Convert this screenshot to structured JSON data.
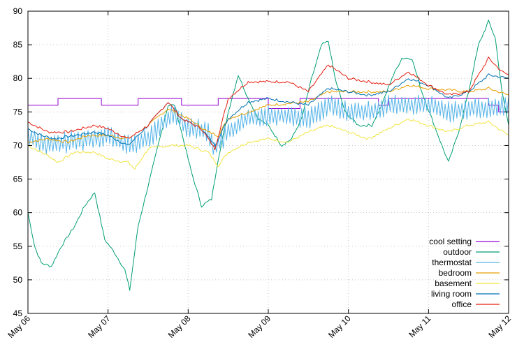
{
  "chart_data": {
    "type": "line",
    "title": "",
    "xlabel": "",
    "ylabel": "",
    "ylim": [
      45,
      90
    ],
    "xlim": [
      "May 06",
      "May 12"
    ],
    "y_ticks": [
      "45",
      "50",
      "55",
      "60",
      "65",
      "70",
      "75",
      "80",
      "85",
      "90"
    ],
    "x_ticks": [
      "May 06",
      "May 07",
      "May 08",
      "May 09",
      "May 10",
      "May 11",
      "May 12"
    ],
    "grid": true,
    "legend_position": "bottom-right",
    "series": [
      {
        "name": "cool setting",
        "color": "#9400d3",
        "interpolation": "step",
        "points": [
          [
            "May 06 00:00",
            76
          ],
          [
            "May 06 09:00",
            77
          ],
          [
            "May 06 22:00",
            76
          ],
          [
            "May 07 09:00",
            77
          ],
          [
            "May 07 22:00",
            76
          ],
          [
            "May 08 09:00",
            77
          ],
          [
            "May 09 00:00",
            75.5
          ],
          [
            "May 09 09:30",
            77
          ],
          [
            "May 10 09:00",
            76
          ],
          [
            "May 10 12:00",
            77
          ],
          [
            "May 11 18:00",
            76
          ],
          [
            "May 11 21:00",
            75
          ],
          [
            "May 12 00:00",
            75
          ]
        ]
      },
      {
        "name": "outdoor",
        "color": "#009e73",
        "points": [
          [
            "May 06 00:00",
            60
          ],
          [
            "May 06 02:00",
            55
          ],
          [
            "May 06 04:00",
            52.5
          ],
          [
            "May 06 07:00",
            52
          ],
          [
            "May 06 10:00",
            55
          ],
          [
            "May 06 14:00",
            58
          ],
          [
            "May 06 17:00",
            61
          ],
          [
            "May 06 20:00",
            63
          ],
          [
            "May 06 23:00",
            56
          ],
          [
            "May 07 02:00",
            54
          ],
          [
            "May 07 05:00",
            51.5
          ],
          [
            "May 07 06:30",
            48.5
          ],
          [
            "May 07 09:00",
            58
          ],
          [
            "May 07 12:00",
            64
          ],
          [
            "May 07 15:00",
            70
          ],
          [
            "May 07 18:00",
            76
          ],
          [
            "May 07 20:00",
            76
          ],
          [
            "May 07 22:00",
            72
          ],
          [
            "May 08 01:00",
            66
          ],
          [
            "May 08 04:00",
            61
          ],
          [
            "May 08 07:00",
            62
          ],
          [
            "May 08 09:00",
            68
          ],
          [
            "May 08 12:00",
            75
          ],
          [
            "May 08 15:00",
            80.5
          ],
          [
            "May 08 18:00",
            77
          ],
          [
            "May 08 21:00",
            74
          ],
          [
            "May 09 00:00",
            73
          ],
          [
            "May 09 04:00",
            70
          ],
          [
            "May 09 07:00",
            71
          ],
          [
            "May 09 10:00",
            74
          ],
          [
            "May 09 13:00",
            80
          ],
          [
            "May 09 16:00",
            85
          ],
          [
            "May 09 18:00",
            85.5
          ],
          [
            "May 09 20:00",
            80
          ],
          [
            "May 09 23:00",
            75
          ],
          [
            "May 10 03:00",
            73
          ],
          [
            "May 10 07:00",
            73
          ],
          [
            "May 10 10:00",
            76
          ],
          [
            "May 10 13:00",
            80
          ],
          [
            "May 10 16:00",
            83
          ],
          [
            "May 10 19:00",
            83
          ],
          [
            "May 10 22:00",
            78
          ],
          [
            "May 11 01:00",
            74
          ],
          [
            "May 11 04:00",
            70
          ],
          [
            "May 11 06:00",
            67.5
          ],
          [
            "May 11 09:00",
            72
          ],
          [
            "May 11 12:00",
            78
          ],
          [
            "May 11 15:00",
            85
          ],
          [
            "May 11 18:00",
            88.5
          ],
          [
            "May 11 20:00",
            86
          ],
          [
            "May 11 22:00",
            78
          ],
          [
            "May 12 00:00",
            73
          ]
        ]
      },
      {
        "name": "thermostat",
        "color": "#56b4e9",
        "oscillation": 1.6,
        "points": [
          [
            "May 06 00:00",
            71.5
          ],
          [
            "May 06 06:00",
            70
          ],
          [
            "May 06 12:00",
            70.5
          ],
          [
            "May 06 18:00",
            71
          ],
          [
            "May 07 00:00",
            71.5
          ],
          [
            "May 07 06:00",
            70
          ],
          [
            "May 07 12:00",
            71
          ],
          [
            "May 07 16:00",
            73
          ],
          [
            "May 07 20:00",
            75
          ],
          [
            "May 07 23:00",
            73
          ],
          [
            "May 08 06:00",
            72
          ],
          [
            "May 08 08:00",
            69.5
          ],
          [
            "May 08 12:00",
            72
          ],
          [
            "May 08 18:00",
            74
          ],
          [
            "May 09 00:00",
            74.5
          ],
          [
            "May 09 06:00",
            74.5
          ],
          [
            "May 09 12:00",
            74
          ],
          [
            "May 09 18:00",
            76
          ],
          [
            "May 10 00:00",
            75
          ],
          [
            "May 10 06:00",
            75
          ],
          [
            "May 10 12:00",
            76
          ],
          [
            "May 10 18:00",
            76
          ],
          [
            "May 11 00:00",
            76
          ],
          [
            "May 11 06:00",
            75
          ],
          [
            "May 11 12:00",
            75.5
          ],
          [
            "May 11 18:00",
            75.5
          ],
          [
            "May 12 00:00",
            76
          ]
        ]
      },
      {
        "name": "bedroom",
        "color": "#e69f00",
        "points": [
          [
            "May 06 00:00",
            70.5
          ],
          [
            "May 06 06:00",
            71
          ],
          [
            "May 06 12:00",
            70.5
          ],
          [
            "May 06 18:00",
            71.5
          ],
          [
            "May 07 00:00",
            71.5
          ],
          [
            "May 07 06:00",
            71
          ],
          [
            "May 07 12:00",
            73
          ],
          [
            "May 07 18:00",
            75.5
          ],
          [
            "May 08 00:00",
            74
          ],
          [
            "May 08 06:00",
            72
          ],
          [
            "May 08 09:00",
            71.5
          ],
          [
            "May 08 12:00",
            74
          ],
          [
            "May 08 18:00",
            75
          ],
          [
            "May 09 00:00",
            76
          ],
          [
            "May 09 12:00",
            76.5
          ],
          [
            "May 09 18:00",
            78
          ],
          [
            "May 10 00:00",
            78
          ],
          [
            "May 10 12:00",
            78
          ],
          [
            "May 10 18:00",
            79
          ],
          [
            "May 11 00:00",
            78.5
          ],
          [
            "May 11 12:00",
            78
          ],
          [
            "May 11 18:00",
            78.5
          ],
          [
            "May 12 00:00",
            77.5
          ]
        ]
      },
      {
        "name": "basement",
        "color": "#f0e442",
        "points": [
          [
            "May 06 00:00",
            70
          ],
          [
            "May 06 06:00",
            68.5
          ],
          [
            "May 06 09:00",
            67.5
          ],
          [
            "May 06 14:00",
            69
          ],
          [
            "May 06 20:00",
            69
          ],
          [
            "May 07 00:00",
            68
          ],
          [
            "May 07 06:00",
            67.5
          ],
          [
            "May 07 08:00",
            66.5
          ],
          [
            "May 07 12:00",
            69.5
          ],
          [
            "May 07 18:00",
            70
          ],
          [
            "May 08 00:00",
            70
          ],
          [
            "May 08 06:00",
            69
          ],
          [
            "May 08 09:00",
            67
          ],
          [
            "May 08 12:00",
            69
          ],
          [
            "May 08 18:00",
            70.5
          ],
          [
            "May 09 00:00",
            71
          ],
          [
            "May 09 06:00",
            70.5
          ],
          [
            "May 09 12:00",
            72
          ],
          [
            "May 09 18:00",
            73
          ],
          [
            "May 10 00:00",
            72
          ],
          [
            "May 10 06:00",
            71
          ],
          [
            "May 10 12:00",
            72.5
          ],
          [
            "May 10 18:00",
            74
          ],
          [
            "May 11 00:00",
            73
          ],
          [
            "May 11 06:00",
            72
          ],
          [
            "May 11 12:00",
            73
          ],
          [
            "May 11 18:00",
            73.5
          ],
          [
            "May 12 00:00",
            71.5
          ]
        ]
      },
      {
        "name": "living room",
        "color": "#0072b2",
        "points": [
          [
            "May 06 00:00",
            72.5
          ],
          [
            "May 06 04:00",
            71.5
          ],
          [
            "May 06 08:00",
            71
          ],
          [
            "May 06 14:00",
            71.5
          ],
          [
            "May 06 20:00",
            72
          ],
          [
            "May 07 00:00",
            71.5
          ],
          [
            "May 07 06:00",
            70
          ],
          [
            "May 07 12:00",
            73
          ],
          [
            "May 07 18:00",
            76.5
          ],
          [
            "May 07 22:00",
            74
          ],
          [
            "May 08 04:00",
            72.5
          ],
          [
            "May 08 08:00",
            70
          ],
          [
            "May 08 12:00",
            74
          ],
          [
            "May 08 18:00",
            76.5
          ],
          [
            "May 09 00:00",
            77
          ],
          [
            "May 09 06:00",
            76.5
          ],
          [
            "May 09 12:00",
            76
          ],
          [
            "May 09 18:00",
            78.5
          ],
          [
            "May 10 00:00",
            78
          ],
          [
            "May 10 06:00",
            77.5
          ],
          [
            "May 10 12:00",
            78
          ],
          [
            "May 10 18:00",
            80
          ],
          [
            "May 11 00:00",
            79
          ],
          [
            "May 11 06:00",
            77
          ],
          [
            "May 11 12:00",
            78
          ],
          [
            "May 11 18:00",
            80.5
          ],
          [
            "May 12 00:00",
            80
          ]
        ]
      },
      {
        "name": "office",
        "color": "#e51e10",
        "points": [
          [
            "May 06 00:00",
            73.5
          ],
          [
            "May 06 06:00",
            72
          ],
          [
            "May 06 12:00",
            72
          ],
          [
            "May 06 20:00",
            73
          ],
          [
            "May 07 00:00",
            72.5
          ],
          [
            "May 07 06:00",
            71
          ],
          [
            "May 07 12:00",
            73
          ],
          [
            "May 07 18:00",
            76.5
          ],
          [
            "May 07 22:00",
            74
          ],
          [
            "May 08 04:00",
            72.5
          ],
          [
            "May 08 08:00",
            69.5
          ],
          [
            "May 08 12:00",
            77
          ],
          [
            "May 08 18:00",
            79.5
          ],
          [
            "May 09 00:00",
            79.5
          ],
          [
            "May 09 06:00",
            79.5
          ],
          [
            "May 09 12:00",
            78
          ],
          [
            "May 09 18:00",
            82
          ],
          [
            "May 10 00:00",
            80
          ],
          [
            "May 10 06:00",
            79.5
          ],
          [
            "May 10 12:00",
            79
          ],
          [
            "May 10 18:00",
            81
          ],
          [
            "May 11 00:00",
            79
          ],
          [
            "May 11 06:00",
            77.5
          ],
          [
            "May 11 12:00",
            78
          ],
          [
            "May 11 18:00",
            83
          ],
          [
            "May 11 22:00",
            81
          ],
          [
            "May 12 00:00",
            80.5
          ]
        ]
      }
    ]
  }
}
